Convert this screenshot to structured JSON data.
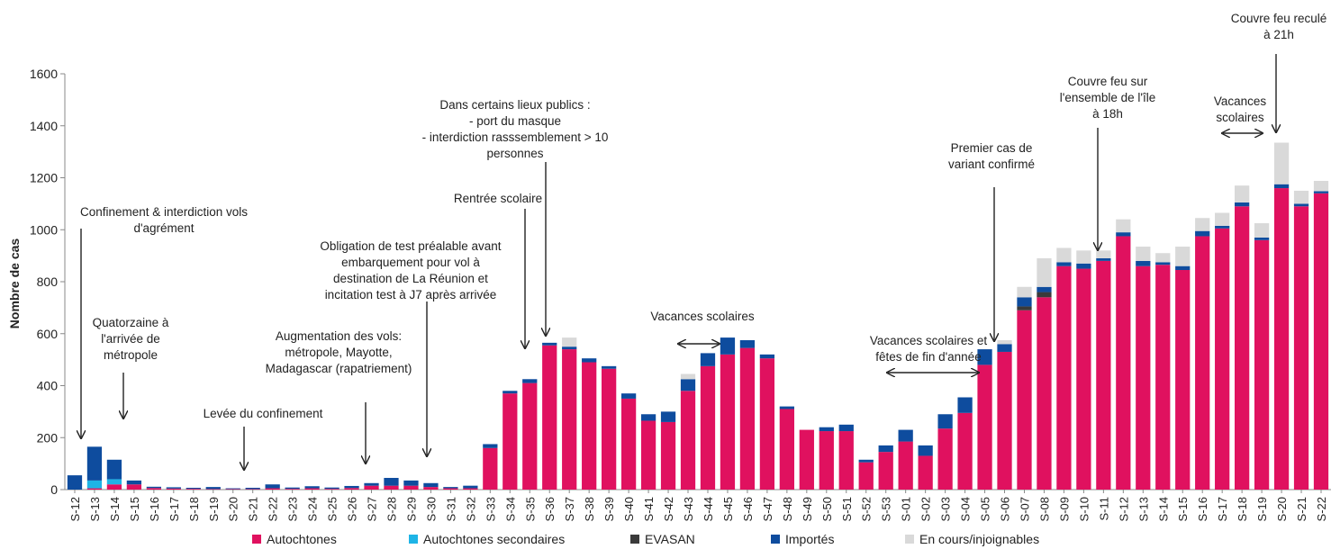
{
  "chart_data": {
    "type": "bar",
    "stacked": true,
    "title": "",
    "xlabel": "",
    "ylabel": "Nombre de cas",
    "ylim": [
      0,
      1600
    ],
    "yticks": [
      0,
      200,
      400,
      600,
      800,
      1000,
      1200,
      1400,
      1600
    ],
    "grid": false,
    "legend_position": "bottom",
    "categories": [
      "S-12",
      "S-13",
      "S-14",
      "S-15",
      "S-16",
      "S-17",
      "S-18",
      "S-19",
      "S-20",
      "S-21",
      "S-22",
      "S-23",
      "S-24",
      "S-25",
      "S-26",
      "S-27",
      "S-28",
      "S-29",
      "S-30",
      "S-31",
      "S-32",
      "S-33",
      "S-34",
      "S-35",
      "S-36",
      "S-37",
      "S-38",
      "S-39",
      "S-40",
      "S-41",
      "S-42",
      "S-43",
      "S-44",
      "S-45",
      "S-46",
      "S-47",
      "S-48",
      "S-49",
      "S-50",
      "S-51",
      "S-52",
      "S-53",
      "S-01",
      "S-02",
      "S-03",
      "S-04",
      "S-05",
      "S-06",
      "S-07",
      "S-08",
      "S-09",
      "S-10",
      "S-11",
      "S-12",
      "S-13",
      "S-14",
      "S-15",
      "S-16",
      "S-17",
      "S-18",
      "S-19",
      "S-20",
      "S-21",
      "S-22"
    ],
    "series": [
      {
        "name": "Autochtones",
        "color": "#E0115F",
        "values": [
          0,
          5,
          20,
          20,
          6,
          4,
          3,
          2,
          2,
          2,
          5,
          3,
          5,
          3,
          6,
          15,
          15,
          15,
          10,
          5,
          5,
          160,
          370,
          410,
          555,
          540,
          490,
          465,
          350,
          265,
          260,
          380,
          475,
          520,
          545,
          505,
          310,
          230,
          225,
          225,
          105,
          145,
          185,
          130,
          235,
          295,
          480,
          530,
          690,
          740,
          860,
          850,
          880,
          975,
          860,
          865,
          845,
          975,
          1005,
          1090,
          960,
          1160,
          1090,
          1140
        ]
      },
      {
        "name": "Autochtones secondaires",
        "color": "#1EB4E6",
        "values": [
          0,
          30,
          20,
          0,
          0,
          0,
          0,
          0,
          0,
          0,
          0,
          0,
          0,
          0,
          0,
          0,
          0,
          0,
          0,
          0,
          0,
          0,
          0,
          0,
          0,
          0,
          0,
          0,
          0,
          0,
          0,
          0,
          0,
          0,
          0,
          0,
          0,
          0,
          0,
          0,
          0,
          0,
          0,
          0,
          0,
          0,
          0,
          0,
          0,
          0,
          0,
          0,
          0,
          0,
          0,
          0,
          0,
          0,
          0,
          0,
          0,
          0,
          0,
          0
        ]
      },
      {
        "name": "EVASAN",
        "color": "#3A3A3A",
        "values": [
          0,
          0,
          0,
          0,
          0,
          0,
          0,
          0,
          0,
          0,
          0,
          0,
          0,
          0,
          0,
          0,
          0,
          0,
          0,
          0,
          0,
          0,
          0,
          0,
          0,
          0,
          0,
          0,
          0,
          0,
          0,
          0,
          0,
          0,
          0,
          0,
          0,
          0,
          0,
          0,
          0,
          0,
          0,
          0,
          0,
          0,
          0,
          0,
          15,
          20,
          0,
          0,
          0,
          0,
          0,
          0,
          0,
          0,
          0,
          0,
          0,
          0,
          0,
          0
        ]
      },
      {
        "name": "Importés",
        "color": "#0E4C9E",
        "values": [
          55,
          130,
          75,
          15,
          5,
          5,
          4,
          8,
          3,
          5,
          15,
          5,
          8,
          5,
          8,
          10,
          30,
          20,
          15,
          5,
          10,
          15,
          10,
          15,
          10,
          10,
          15,
          10,
          20,
          25,
          40,
          45,
          50,
          65,
          30,
          15,
          10,
          0,
          15,
          25,
          10,
          25,
          45,
          40,
          55,
          60,
          60,
          30,
          35,
          20,
          15,
          20,
          10,
          15,
          20,
          10,
          15,
          20,
          10,
          15,
          10,
          15,
          10,
          8
        ]
      },
      {
        "name": "En cours/injoignables",
        "color": "#D9D9D9",
        "values": [
          0,
          0,
          0,
          0,
          0,
          0,
          0,
          0,
          0,
          0,
          0,
          0,
          0,
          0,
          0,
          0,
          0,
          0,
          0,
          0,
          0,
          0,
          0,
          0,
          0,
          35,
          0,
          0,
          0,
          0,
          0,
          20,
          0,
          0,
          0,
          0,
          0,
          0,
          0,
          0,
          0,
          0,
          0,
          0,
          0,
          0,
          0,
          15,
          40,
          110,
          55,
          50,
          30,
          50,
          55,
          35,
          75,
          50,
          50,
          65,
          55,
          160,
          50,
          40
        ]
      }
    ],
    "annotations": [
      {
        "text": "Confinement &  interdiction vols d'agrément",
        "week_index": 0
      },
      {
        "text": "Quatorzaine à l'arrivée de métropole",
        "week_index": 2
      },
      {
        "text": "Levée du confinement",
        "week_index": 8
      },
      {
        "text": "Augmentation des vols: métropole, Mayotte, Madagascar (rapatriement)",
        "week_index": 15
      },
      {
        "text": "Obligation de test préalable avant embarquement pour vol à destination de La Réunion et incitation test à J7 après arrivée",
        "week_index": 18
      },
      {
        "text": "Rentrée scolaire",
        "week_index": 23
      },
      {
        "text": "Dans certains lieux publics : - port du masque - interdiction rasssemblement  > 10 personnes",
        "week_index": 24
      },
      {
        "text": "Vacances scolaires",
        "range": [
          32,
          33
        ]
      },
      {
        "text": "Vacances scolaires et fêtes de fin d'année",
        "range": [
          42,
          46
        ]
      },
      {
        "text": "Premier cas de variant confirmé",
        "week_index": 46
      },
      {
        "text": "Couvre feu sur l'ensemble de l'île à 18h",
        "week_index": 52
      },
      {
        "text": "Vacances scolaires",
        "range": [
          59,
          60
        ]
      },
      {
        "text": "Couvre feu reculé à 21h",
        "week_index": 61
      }
    ]
  }
}
